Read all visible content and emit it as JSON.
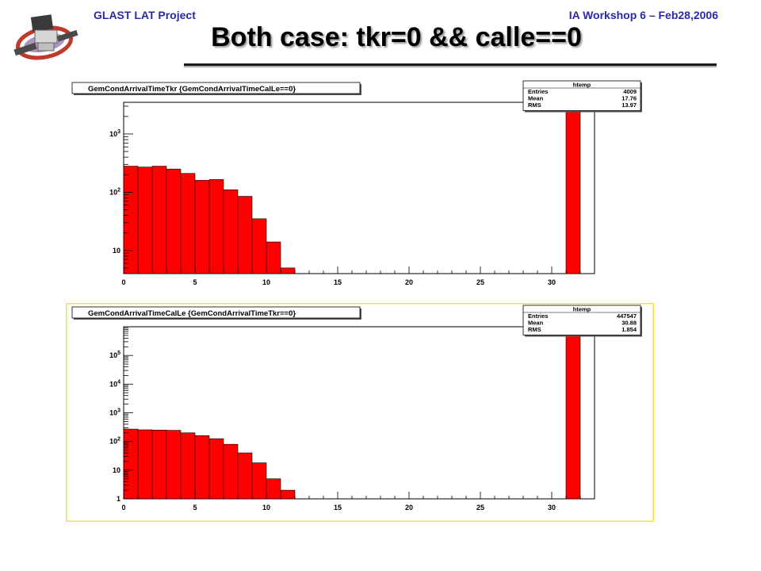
{
  "header": {
    "left": "GLAST LAT Project",
    "right": "IA Workshop 6 – Feb28,2006",
    "title": "Both case: tkr=0 && calle==0"
  },
  "logo": {
    "icon": "glast-satellite-logo"
  },
  "colors": {
    "header_text": "#2a2aa8",
    "bar_fill": "#ff0000",
    "selected_frame": "#e6e64a"
  },
  "chart_data": [
    {
      "type": "bar",
      "title": "GemCondArrivalTimeTkr {GemCondArrivalTimeCalLe==0}",
      "log_y": true,
      "xlim": [
        0,
        33
      ],
      "ylim": [
        4,
        3500
      ],
      "xticks": [
        0,
        5,
        10,
        15,
        20,
        25,
        30
      ],
      "yticks": [
        10,
        100,
        1000
      ],
      "ytick_labels": [
        "10",
        "10^2",
        "10^3"
      ],
      "bin_width": 1,
      "bins": [
        0,
        1,
        2,
        3,
        4,
        5,
        6,
        7,
        8,
        9,
        10,
        11,
        31
      ],
      "values": [
        280,
        270,
        280,
        250,
        210,
        160,
        165,
        110,
        85,
        35,
        14,
        5,
        3600
      ],
      "stats": {
        "name": "htemp",
        "rows": [
          {
            "label": "Entries",
            "value": "4009"
          },
          {
            "label": "Mean",
            "value": "17.76"
          },
          {
            "label": "RMS",
            "value": "13.97"
          }
        ]
      },
      "selected": false
    },
    {
      "type": "bar",
      "title": "GemCondArrivalTimeCalLe {GemCondArrivalTimeTkr==0}",
      "log_y": true,
      "xlim": [
        0,
        33
      ],
      "ylim": [
        1,
        1000000
      ],
      "xticks": [
        0,
        5,
        10,
        15,
        20,
        25,
        30
      ],
      "yticks": [
        1,
        10,
        100,
        1000,
        10000,
        100000
      ],
      "ytick_labels": [
        "1",
        "10",
        "10^2",
        "10^3",
        "10^4",
        "10^5"
      ],
      "bin_width": 1,
      "bins": [
        0,
        1,
        2,
        3,
        4,
        5,
        6,
        7,
        8,
        9,
        10,
        11,
        31
      ],
      "values": [
        270,
        255,
        250,
        245,
        200,
        160,
        125,
        80,
        40,
        18,
        5,
        2,
        1000000
      ],
      "stats": {
        "name": "htemp",
        "rows": [
          {
            "label": "Entries",
            "value": "447547"
          },
          {
            "label": "Mean",
            "value": "30.88"
          },
          {
            "label": "RMS",
            "value": "1.854"
          }
        ]
      },
      "selected": true
    }
  ]
}
